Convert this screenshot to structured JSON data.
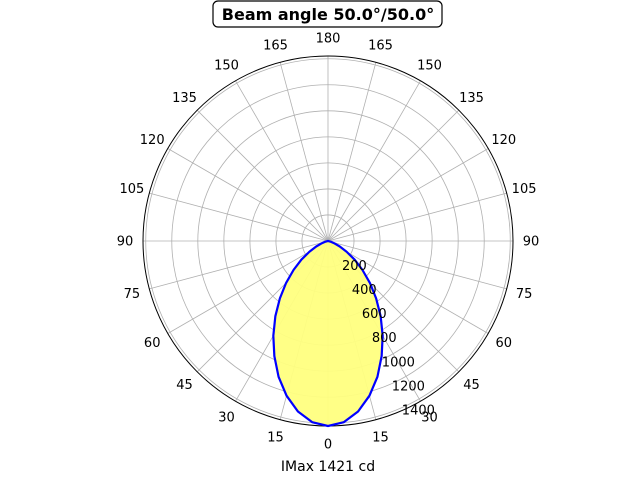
{
  "chart_data": {
    "type": "polar-area",
    "title": "Beam angle 50.0°/50.0°",
    "xlabel": "IMax 1421 cd",
    "angle_tick_labels": [
      {
        "angle": 0,
        "label": "0"
      },
      {
        "angle": 15,
        "label": "15"
      },
      {
        "angle": 30,
        "label": "30"
      },
      {
        "angle": 45,
        "label": "45"
      },
      {
        "angle": 60,
        "label": "60"
      },
      {
        "angle": 75,
        "label": "75"
      },
      {
        "angle": 90,
        "label": "90"
      },
      {
        "angle": 105,
        "label": "105"
      },
      {
        "angle": 120,
        "label": "120"
      },
      {
        "angle": 135,
        "label": "135"
      },
      {
        "angle": 150,
        "label": "150"
      },
      {
        "angle": 165,
        "label": "165"
      },
      {
        "angle": 180,
        "label": "180"
      }
    ],
    "radial_ticks": [
      200,
      400,
      600,
      800,
      1000,
      1200,
      1400
    ],
    "rlim": [
      0,
      1421
    ],
    "grid": true,
    "series": [
      {
        "color": "#0000ff",
        "fill": "#ffff80",
        "angles": [
          0,
          5,
          10,
          15,
          20,
          25,
          30,
          35,
          40,
          45,
          50,
          55,
          60,
          65,
          70,
          75,
          80,
          85,
          90
        ],
        "values": [
          1421,
          1397,
          1330,
          1230,
          1110,
          975,
          840,
          705,
          575,
          455,
          345,
          250,
          165,
          100,
          50,
          20,
          6,
          1,
          0
        ]
      }
    ]
  }
}
